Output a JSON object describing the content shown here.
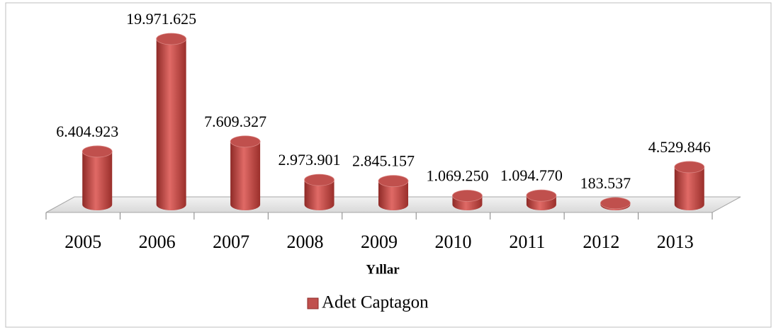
{
  "chart_data": {
    "type": "bar3d",
    "x_label": "Yıllar",
    "categories": [
      "2005",
      "2006",
      "2007",
      "2008",
      "2009",
      "2010",
      "2011",
      "2012",
      "2013"
    ],
    "series": [
      {
        "name": "Adet Captagon",
        "color": "#c0504d",
        "values": [
          6404923,
          19971625,
          7609327,
          2973901,
          2845157,
          1069250,
          1094770,
          183537,
          4529846
        ],
        "value_labels": [
          "6.404.923",
          "19.971.625",
          "7.609.327",
          "2.973.901",
          "2.845.157",
          "1.069.250",
          "1.094.770",
          "183.537",
          "4.529.846"
        ]
      }
    ],
    "legend": "bottom"
  }
}
